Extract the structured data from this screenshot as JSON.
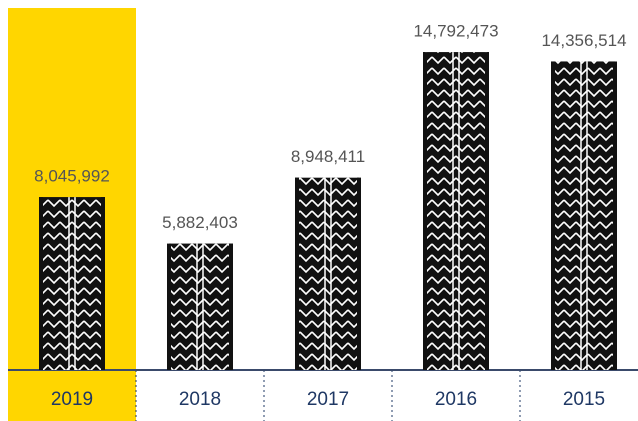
{
  "chart_data": {
    "type": "bar",
    "categories": [
      "2019",
      "2018",
      "2017",
      "2016",
      "2015"
    ],
    "values": [
      8045992,
      5882403,
      8948411,
      14792473,
      14356514
    ],
    "value_labels": [
      "8,045,992",
      "5,882,403",
      "8,948,411",
      "14,792,473",
      "14,356,514"
    ],
    "color": "#111111",
    "highlight_index": 0,
    "highlight_color": "#ffd600",
    "ylim": [
      0,
      16750000
    ]
  }
}
